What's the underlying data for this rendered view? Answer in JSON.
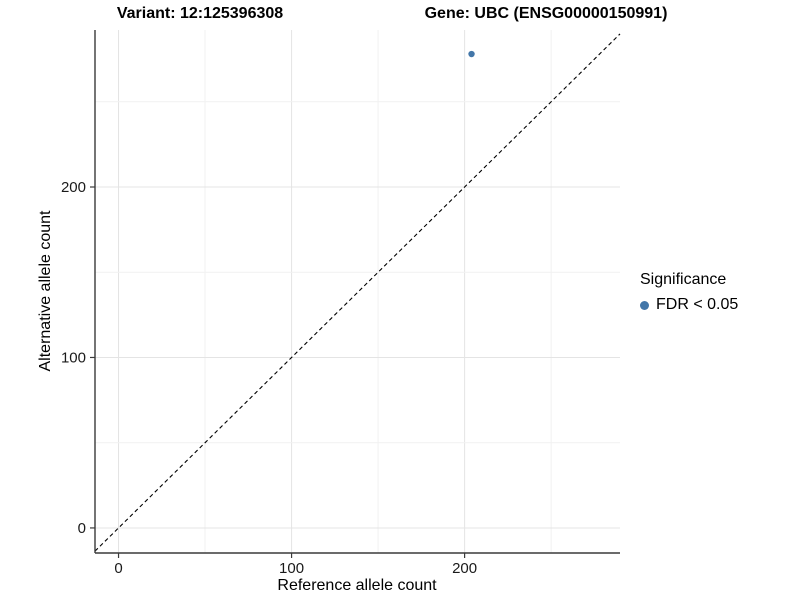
{
  "chart_data": {
    "type": "scatter",
    "title_variant": "Variant: 12:125396308",
    "title_gene": "Gene: UBC (ENSG00000150991)",
    "xlabel": "Reference allele count",
    "ylabel": "Alternative allele count",
    "xlim": [
      -13.6,
      289.8
    ],
    "ylim": [
      -14.7,
      292.1
    ],
    "xticks": [
      0,
      100,
      200
    ],
    "yticks": [
      0,
      100,
      200
    ],
    "grid": true,
    "grid_interval_minor": 50,
    "grid_interval_major": 100,
    "points": [
      {
        "x": 204,
        "y": 278,
        "series": "FDR < 0.05"
      }
    ],
    "identity_line": {
      "equation": "y = x",
      "style": "dashed",
      "color": "#000000"
    },
    "legend": {
      "title": "Significance",
      "position": "right",
      "items": [
        {
          "label": "FDR < 0.05",
          "color": "#4377a9"
        }
      ]
    },
    "colors": {
      "point": "#4377a9",
      "axis": "#3a3a3a",
      "tick_text": "#1a1a1a",
      "grid_major": "#e4e4e4",
      "grid_minor": "#f1f1f1",
      "background": "#ffffff"
    }
  }
}
